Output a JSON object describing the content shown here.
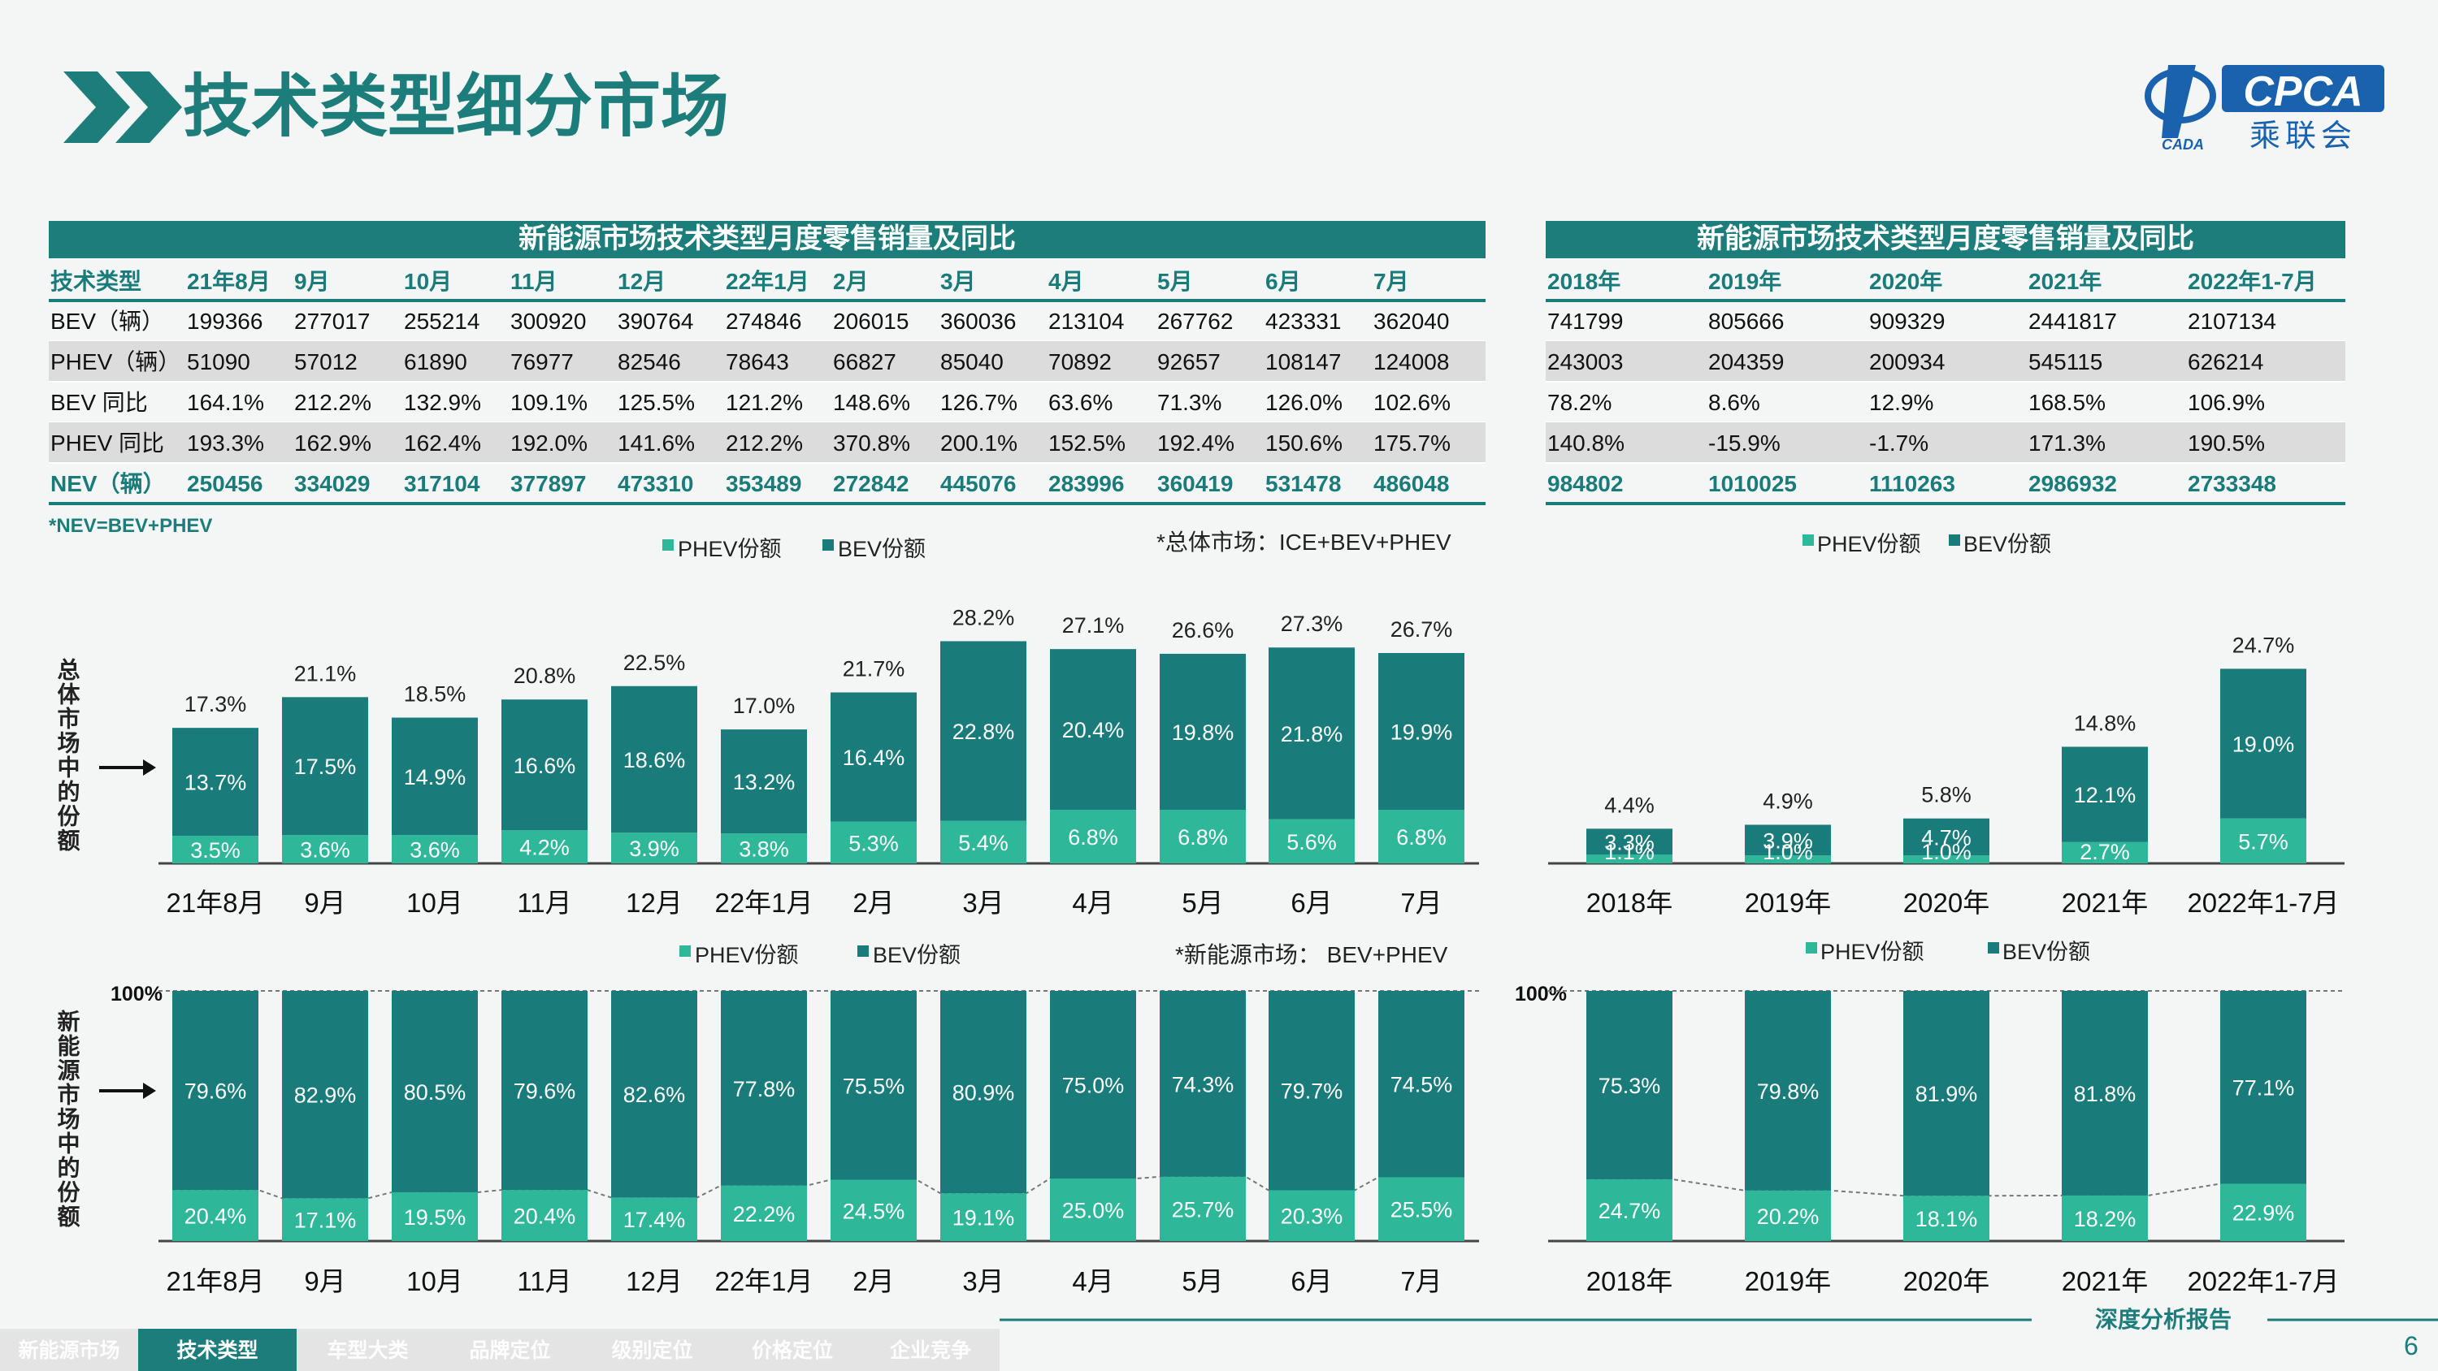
{
  "title": "技术类型细分市场",
  "logo": {
    "brand": "CPCA",
    "sub": "乘联会",
    "small": "CADA"
  },
  "colors": {
    "teal": "#1a7c7a",
    "light": "#2fb79a",
    "header_bg": "#1d7d7b",
    "alt_row": "#dcdcdc",
    "nav_bg": "#e6e6e6",
    "nav_active": "#1d7d7b"
  },
  "table_monthly": {
    "title": "新能源市场技术类型月度零售销量及同比",
    "headers": [
      "技术类型",
      "21年8月",
      "9月",
      "10月",
      "11月",
      "12月",
      "22年1月",
      "2月",
      "3月",
      "4月",
      "5月",
      "6月",
      "7月"
    ],
    "rows": [
      [
        "BEV（辆）",
        "199366",
        "277017",
        "255214",
        "300920",
        "390764",
        "274846",
        "206015",
        "360036",
        "213104",
        "267762",
        "423331",
        "362040"
      ],
      [
        "PHEV（辆）",
        "51090",
        "57012",
        "61890",
        "76977",
        "82546",
        "78643",
        "66827",
        "85040",
        "70892",
        "92657",
        "108147",
        "124008"
      ],
      [
        "BEV 同比",
        "164.1%",
        "212.2%",
        "132.9%",
        "109.1%",
        "125.5%",
        "121.2%",
        "148.6%",
        "126.7%",
        "63.6%",
        "71.3%",
        "126.0%",
        "102.6%"
      ],
      [
        "PHEV 同比",
        "193.3%",
        "162.9%",
        "162.4%",
        "192.0%",
        "141.6%",
        "212.2%",
        "370.8%",
        "200.1%",
        "152.5%",
        "192.4%",
        "150.6%",
        "175.7%"
      ],
      [
        "NEV（辆）",
        "250456",
        "334029",
        "317104",
        "377897",
        "473310",
        "353489",
        "272842",
        "445076",
        "283996",
        "360419",
        "531478",
        "486048"
      ]
    ]
  },
  "table_yearly": {
    "title": "新能源市场技术类型月度零售销量及同比",
    "headers": [
      "2018年",
      "2019年",
      "2020年",
      "2021年",
      "2022年1-7月"
    ],
    "rows": [
      [
        "741799",
        "805666",
        "909329",
        "2441817",
        "2107134"
      ],
      [
        "243003",
        "204359",
        "200934",
        "545115",
        "626214"
      ],
      [
        "78.2%",
        "8.6%",
        "12.9%",
        "168.5%",
        "106.9%"
      ],
      [
        "140.8%",
        "-15.9%",
        "-1.7%",
        "171.3%",
        "190.5%"
      ],
      [
        "984802",
        "1010025",
        "1110263",
        "2986932",
        "2733348"
      ]
    ]
  },
  "footnote": "*NEV=BEV+PHEV",
  "legend_phev": "PHEV份额",
  "legend_bev": "BEV份额",
  "note_total": "*总体市场：ICE+BEV+PHEV",
  "note_nev": "*新能源市场：  BEV+PHEV",
  "ylabel_top": "总体市场中的份额",
  "ylabel_bottom": "新能源市场中的份额",
  "label_100": "100%",
  "chart_data": [
    {
      "type": "bar",
      "stacked": true,
      "categories": [
        "21年8月",
        "9月",
        "10月",
        "11月",
        "12月",
        "22年1月",
        "2月",
        "3月",
        "4月",
        "5月",
        "6月",
        "7月"
      ],
      "series": [
        {
          "name": "PHEV份额",
          "values": [
            3.5,
            3.6,
            3.6,
            4.2,
            3.9,
            3.8,
            5.3,
            5.4,
            6.8,
            6.8,
            5.6,
            6.8
          ],
          "labels": [
            "3.5%",
            "3.6%",
            "3.6%",
            "4.2%",
            "3.9%",
            "3.8%",
            "5.3%",
            "5.4%",
            "6.8%",
            "6.8%",
            "5.6%",
            "6.8%"
          ]
        },
        {
          "name": "BEV份额",
          "values": [
            13.7,
            17.5,
            14.9,
            16.6,
            18.6,
            13.2,
            16.4,
            22.8,
            20.4,
            19.8,
            21.8,
            19.9
          ],
          "labels": [
            "13.7%",
            "17.5%",
            "14.9%",
            "16.6%",
            "18.6%",
            "13.2%",
            "16.4%",
            "22.8%",
            "20.4%",
            "19.8%",
            "21.8%",
            "19.9%"
          ]
        }
      ],
      "totals": [
        "17.3%",
        "21.1%",
        "18.5%",
        "20.8%",
        "22.5%",
        "17.0%",
        "21.7%",
        "28.2%",
        "27.1%",
        "26.6%",
        "27.3%",
        "26.7%"
      ],
      "ylim": [
        0,
        30
      ]
    },
    {
      "type": "bar",
      "stacked": true,
      "categories": [
        "2018年",
        "2019年",
        "2020年",
        "2021年",
        "2022年1-7月"
      ],
      "series": [
        {
          "name": "PHEV份额",
          "values": [
            1.1,
            1.0,
            1.0,
            2.7,
            5.7
          ],
          "labels": [
            "1.1%",
            "1.0%",
            "1.0%",
            "2.7%",
            "5.7%"
          ]
        },
        {
          "name": "BEV份额",
          "values": [
            3.3,
            3.9,
            4.7,
            12.1,
            19.0
          ],
          "labels": [
            "3.3%",
            "3.9%",
            "4.7%",
            "12.1%",
            "19.0%"
          ]
        }
      ],
      "totals": [
        "4.4%",
        "4.9%",
        "5.8%",
        "14.8%",
        "24.7%"
      ],
      "ylim": [
        0,
        30
      ]
    },
    {
      "type": "bar",
      "stacked": true,
      "percent": true,
      "categories": [
        "21年8月",
        "9月",
        "10月",
        "11月",
        "12月",
        "22年1月",
        "2月",
        "3月",
        "4月",
        "5月",
        "6月",
        "7月"
      ],
      "series": [
        {
          "name": "PHEV份额",
          "values": [
            20.4,
            17.1,
            19.5,
            20.4,
            17.4,
            22.2,
            24.5,
            19.1,
            25.0,
            25.7,
            20.3,
            25.5
          ],
          "labels": [
            "20.4%",
            "17.1%",
            "19.5%",
            "20.4%",
            "17.4%",
            "22.2%",
            "24.5%",
            "19.1%",
            "25.0%",
            "25.7%",
            "20.3%",
            "25.5%"
          ]
        },
        {
          "name": "BEV份额",
          "values": [
            79.6,
            82.9,
            80.5,
            79.6,
            82.6,
            77.8,
            75.5,
            80.9,
            75.0,
            74.3,
            79.7,
            74.5
          ],
          "labels": [
            "79.6%",
            "82.9%",
            "80.5%",
            "79.6%",
            "82.6%",
            "77.8%",
            "75.5%",
            "80.9%",
            "75.0%",
            "74.3%",
            "79.7%",
            "74.5%"
          ]
        }
      ],
      "ylim": [
        0,
        100
      ]
    },
    {
      "type": "bar",
      "stacked": true,
      "percent": true,
      "categories": [
        "2018年",
        "2019年",
        "2020年",
        "2021年",
        "2022年1-7月"
      ],
      "series": [
        {
          "name": "PHEV份额",
          "values": [
            24.7,
            20.2,
            18.1,
            18.2,
            22.9
          ],
          "labels": [
            "24.7%",
            "20.2%",
            "18.1%",
            "18.2%",
            "22.9%"
          ]
        },
        {
          "name": "BEV份额",
          "values": [
            75.3,
            79.8,
            81.9,
            81.8,
            77.1
          ],
          "labels": [
            "75.3%",
            "79.8%",
            "81.9%",
            "81.8%",
            "77.1%"
          ]
        }
      ],
      "ylim": [
        0,
        100
      ]
    }
  ],
  "nav": {
    "items": [
      "新能源市场",
      "技术类型",
      "车型大类",
      "品牌定位",
      "级别定位",
      "价格定位",
      "企业竞争"
    ],
    "active": 1
  },
  "footer_text": "深度分析报告",
  "page_number": "6"
}
